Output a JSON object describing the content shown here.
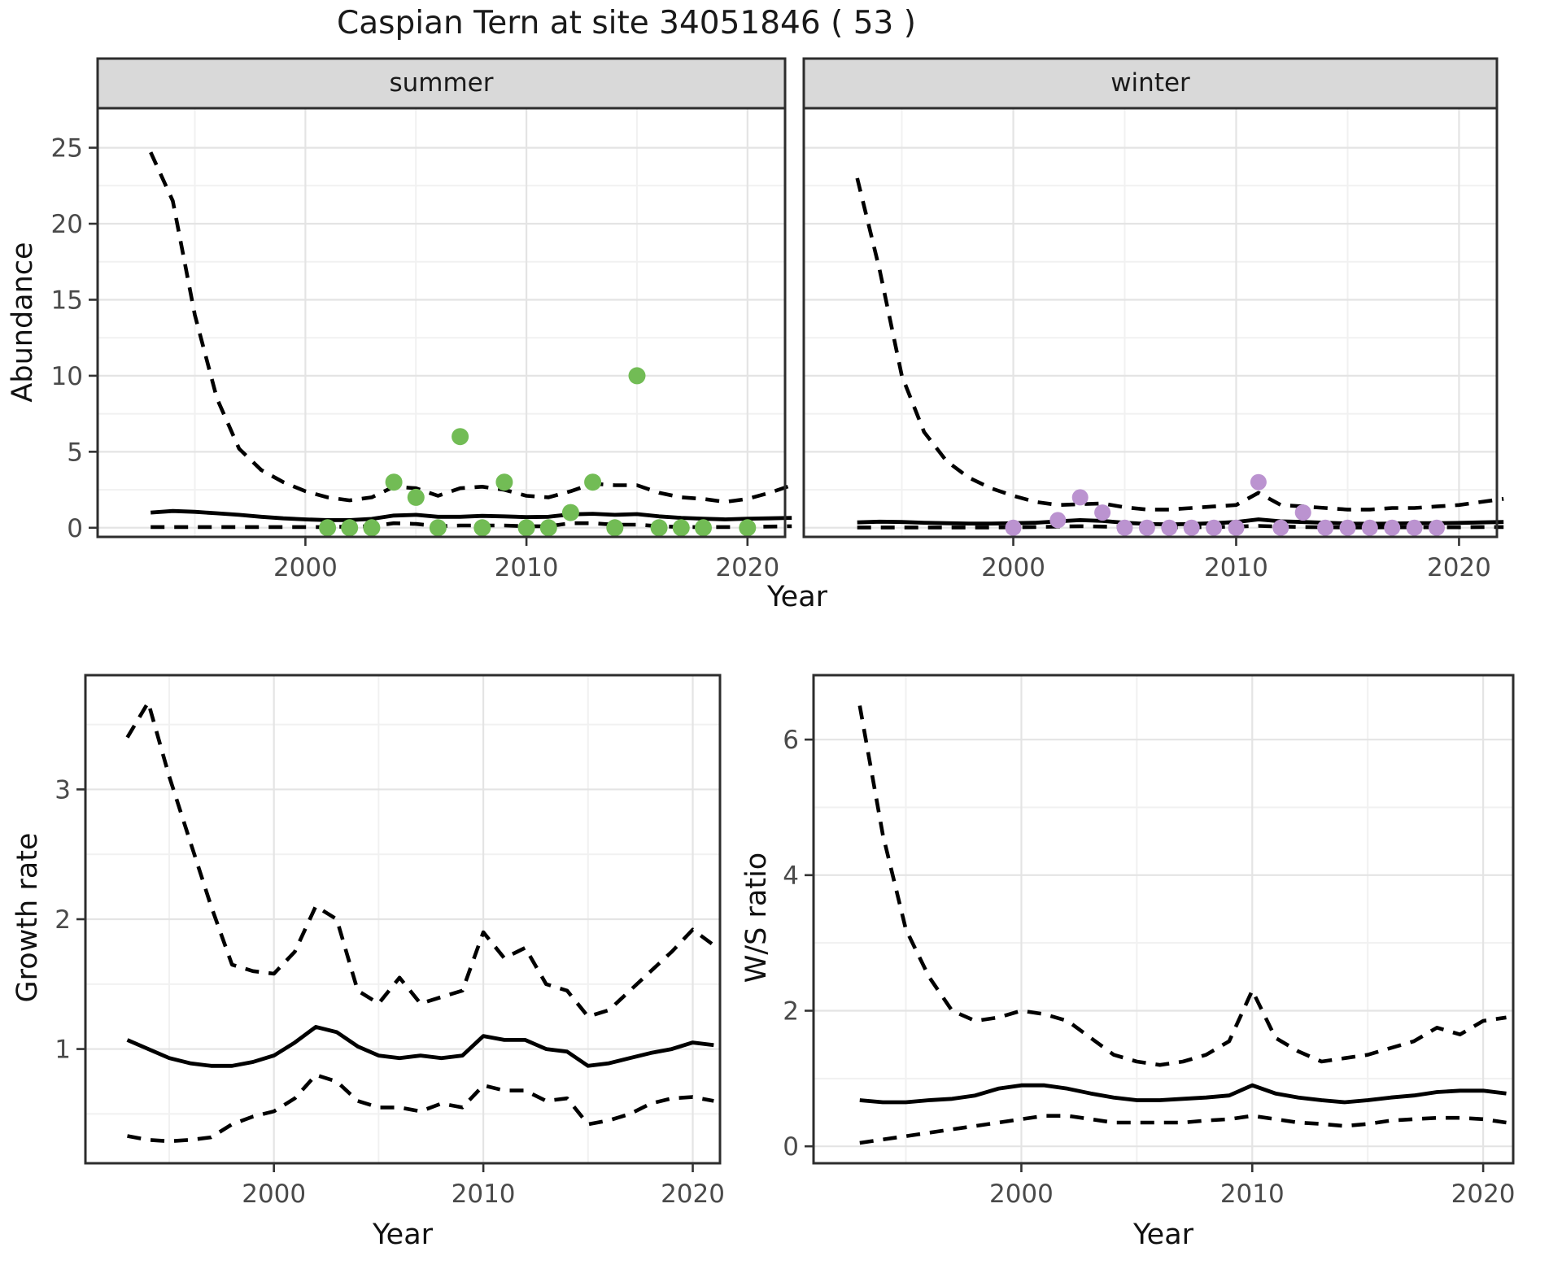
{
  "title": "Caspian Tern at site 34051846 ( 53 )",
  "top_row": {
    "ylabel": "Abundance",
    "xlabel": "Year",
    "facets": [
      "summer",
      "winter"
    ]
  },
  "bottom_row": {
    "left": {
      "ylabel": "Growth rate",
      "xlabel": "Year"
    },
    "right": {
      "ylabel": "W/S ratio",
      "xlabel": "Year"
    }
  },
  "colors": {
    "summer_point": "#72bc55",
    "winter_point": "#bb93d0",
    "curve": "#000000",
    "strip_bg": "#d9d9d9",
    "grid_major": "#e4e4e4",
    "grid_minor": "#f1f1f1",
    "panel_border": "#2d2d2d",
    "tick_text": "#4a4a4a"
  },
  "chart_data": [
    {
      "id": "abundance-summer",
      "type": "scatter",
      "facet": "summer",
      "xlim": [
        1990.6,
        2021.7
      ],
      "ylim": [
        -0.6,
        27.6
      ],
      "xticks": [
        2000,
        2010,
        2020
      ],
      "yticks": [
        0,
        5,
        10,
        15,
        20,
        25
      ],
      "xminor": [
        1995,
        2005,
        2015
      ],
      "yminor": [
        2.5,
        7.5,
        12.5,
        17.5,
        22.5
      ],
      "x": [
        1993,
        1994,
        1995,
        1996,
        1997,
        1998,
        1999,
        2000,
        2001,
        2002,
        2003,
        2004,
        2005,
        2006,
        2007,
        2008,
        2009,
        2010,
        2011,
        2012,
        2013,
        2014,
        2015,
        2016,
        2017,
        2018,
        2019,
        2020,
        2021,
        2022
      ],
      "upper": [
        24.7,
        21.5,
        14.0,
        8.5,
        5.2,
        3.8,
        3.0,
        2.4,
        2.0,
        1.8,
        2.0,
        2.7,
        2.6,
        2.1,
        2.6,
        2.7,
        2.5,
        2.1,
        2.0,
        2.4,
        2.9,
        2.8,
        2.8,
        2.3,
        2.0,
        1.9,
        1.7,
        1.9,
        2.3,
        2.8
      ],
      "median": [
        1.0,
        1.1,
        1.05,
        0.95,
        0.85,
        0.72,
        0.62,
        0.55,
        0.5,
        0.5,
        0.58,
        0.8,
        0.85,
        0.72,
        0.72,
        0.78,
        0.75,
        0.7,
        0.72,
        0.88,
        0.92,
        0.85,
        0.9,
        0.75,
        0.65,
        0.6,
        0.55,
        0.6,
        0.62,
        0.65
      ],
      "lower": [
        0.05,
        0.05,
        0.05,
        0.05,
        0.05,
        0.05,
        0.05,
        0.05,
        0.05,
        0.08,
        0.1,
        0.3,
        0.25,
        0.1,
        0.15,
        0.15,
        0.15,
        0.1,
        0.1,
        0.3,
        0.3,
        0.2,
        0.2,
        0.1,
        0.05,
        0.05,
        0.05,
        0.05,
        0.08,
        0.1
      ],
      "points_x": [
        2001,
        2002,
        2003,
        2004,
        2005,
        2006,
        2007,
        2008,
        2009,
        2010,
        2011,
        2012,
        2013,
        2014,
        2015,
        2016,
        2017,
        2018,
        2020
      ],
      "points_y": [
        0,
        0,
        0,
        3,
        2,
        0,
        6,
        0,
        3,
        0,
        0,
        1,
        3,
        0,
        10,
        0,
        0,
        0,
        0
      ],
      "point_color": "#72bc55",
      "point_r": 10.5
    },
    {
      "id": "abundance-winter",
      "type": "scatter",
      "facet": "winter",
      "xlim": [
        1990.6,
        2021.7
      ],
      "ylim": [
        -0.6,
        27.6
      ],
      "xticks": [
        2000,
        2010,
        2020
      ],
      "yticks": [
        0,
        5,
        10,
        15,
        20,
        25
      ],
      "xminor": [
        1995,
        2005,
        2015
      ],
      "yminor": [
        2.5,
        7.5,
        12.5,
        17.5,
        22.5
      ],
      "x": [
        1993,
        1994,
        1995,
        1996,
        1997,
        1998,
        1999,
        2000,
        2001,
        2002,
        2003,
        2004,
        2005,
        2006,
        2007,
        2008,
        2009,
        2010,
        2011,
        2012,
        2013,
        2014,
        2015,
        2016,
        2017,
        2018,
        2019,
        2020,
        2021,
        2022
      ],
      "upper": [
        23.0,
        17.0,
        10.0,
        6.3,
        4.4,
        3.3,
        2.6,
        2.1,
        1.7,
        1.5,
        1.55,
        1.6,
        1.35,
        1.2,
        1.2,
        1.3,
        1.4,
        1.5,
        2.3,
        1.5,
        1.4,
        1.3,
        1.2,
        1.2,
        1.3,
        1.3,
        1.4,
        1.5,
        1.7,
        1.9
      ],
      "median": [
        0.35,
        0.4,
        0.38,
        0.33,
        0.3,
        0.28,
        0.28,
        0.3,
        0.33,
        0.42,
        0.5,
        0.45,
        0.33,
        0.25,
        0.22,
        0.25,
        0.3,
        0.38,
        0.55,
        0.42,
        0.38,
        0.33,
        0.28,
        0.26,
        0.28,
        0.3,
        0.3,
        0.32,
        0.35,
        0.38
      ],
      "lower": [
        0.02,
        0.02,
        0.02,
        0.02,
        0.02,
        0.02,
        0.02,
        0.03,
        0.05,
        0.08,
        0.1,
        0.08,
        0.05,
        0.03,
        0.02,
        0.03,
        0.05,
        0.08,
        0.12,
        0.08,
        0.05,
        0.03,
        0.02,
        0.02,
        0.03,
        0.03,
        0.03,
        0.03,
        0.05,
        0.05
      ],
      "points_x": [
        2000,
        2002,
        2003,
        2004,
        2005,
        2006,
        2007,
        2008,
        2009,
        2010,
        2011,
        2012,
        2013,
        2014,
        2015,
        2016,
        2017,
        2018,
        2019
      ],
      "points_y": [
        0,
        0.5,
        2,
        1,
        0,
        0,
        0,
        0,
        0,
        0,
        3,
        0,
        1,
        0,
        0,
        0,
        0,
        0,
        0
      ],
      "point_color": "#bb93d0",
      "point_r": 10
    },
    {
      "id": "growth-rate",
      "type": "line",
      "xlim": [
        1991.0,
        2021.3
      ],
      "ylim": [
        0.12,
        3.88
      ],
      "xticks": [
        2000,
        2010,
        2020
      ],
      "yticks": [
        1,
        2,
        3
      ],
      "xminor": [
        1995,
        2005,
        2015
      ],
      "yminor": [
        0.5,
        1.5,
        2.5,
        3.5
      ],
      "x": [
        1993,
        1994,
        1995,
        1996,
        1997,
        1998,
        1999,
        2000,
        2001,
        2002,
        2003,
        2004,
        2005,
        2006,
        2007,
        2008,
        2009,
        2010,
        2011,
        2012,
        2013,
        2014,
        2015,
        2016,
        2017,
        2018,
        2019,
        2020,
        2021
      ],
      "upper": [
        3.4,
        3.67,
        3.1,
        2.6,
        2.1,
        1.65,
        1.6,
        1.58,
        1.75,
        2.1,
        2.0,
        1.45,
        1.35,
        1.55,
        1.35,
        1.4,
        1.45,
        1.9,
        1.7,
        1.78,
        1.5,
        1.45,
        1.25,
        1.3,
        1.45,
        1.6,
        1.75,
        1.92,
        1.8
      ],
      "median": [
        1.07,
        1.0,
        0.93,
        0.89,
        0.87,
        0.87,
        0.9,
        0.95,
        1.05,
        1.17,
        1.13,
        1.02,
        0.95,
        0.93,
        0.95,
        0.93,
        0.95,
        1.1,
        1.07,
        1.07,
        1.0,
        0.98,
        0.87,
        0.89,
        0.93,
        0.97,
        1.0,
        1.05,
        1.03
      ],
      "lower": [
        0.33,
        0.3,
        0.29,
        0.3,
        0.32,
        0.42,
        0.48,
        0.52,
        0.62,
        0.8,
        0.75,
        0.6,
        0.55,
        0.55,
        0.52,
        0.58,
        0.55,
        0.72,
        0.68,
        0.68,
        0.6,
        0.62,
        0.42,
        0.45,
        0.5,
        0.58,
        0.62,
        0.63,
        0.6
      ],
      "points_x": [],
      "points_y": [],
      "point_color": "#000000",
      "point_r": 0
    },
    {
      "id": "ws-ratio",
      "type": "line",
      "xlim": [
        1991.0,
        2021.3
      ],
      "ylim": [
        -0.25,
        6.95
      ],
      "xticks": [
        2000,
        2010,
        2020
      ],
      "yticks": [
        0,
        2,
        4,
        6
      ],
      "xminor": [
        1995,
        2005,
        2015
      ],
      "yminor": [
        1,
        3,
        5
      ],
      "x": [
        1993,
        1994,
        1995,
        1996,
        1997,
        1998,
        1999,
        2000,
        2001,
        2002,
        2003,
        2004,
        2005,
        2006,
        2007,
        2008,
        2009,
        2010,
        2011,
        2012,
        2013,
        2014,
        2015,
        2016,
        2017,
        2018,
        2019,
        2020,
        2021
      ],
      "upper": [
        6.5,
        4.6,
        3.2,
        2.5,
        2.0,
        1.85,
        1.9,
        2.0,
        1.95,
        1.85,
        1.6,
        1.35,
        1.25,
        1.2,
        1.25,
        1.35,
        1.55,
        2.3,
        1.6,
        1.4,
        1.25,
        1.3,
        1.35,
        1.45,
        1.55,
        1.75,
        1.65,
        1.85,
        1.9
      ],
      "median": [
        0.68,
        0.65,
        0.65,
        0.68,
        0.7,
        0.75,
        0.85,
        0.9,
        0.9,
        0.85,
        0.78,
        0.72,
        0.68,
        0.68,
        0.7,
        0.72,
        0.75,
        0.9,
        0.78,
        0.72,
        0.68,
        0.65,
        0.68,
        0.72,
        0.75,
        0.8,
        0.82,
        0.82,
        0.78
      ],
      "lower": [
        0.05,
        0.1,
        0.15,
        0.2,
        0.25,
        0.3,
        0.35,
        0.4,
        0.45,
        0.45,
        0.4,
        0.35,
        0.35,
        0.35,
        0.35,
        0.38,
        0.4,
        0.45,
        0.4,
        0.35,
        0.33,
        0.3,
        0.33,
        0.38,
        0.4,
        0.42,
        0.42,
        0.4,
        0.35
      ],
      "points_x": [],
      "points_y": [],
      "point_color": "#000000",
      "point_r": 0
    }
  ]
}
